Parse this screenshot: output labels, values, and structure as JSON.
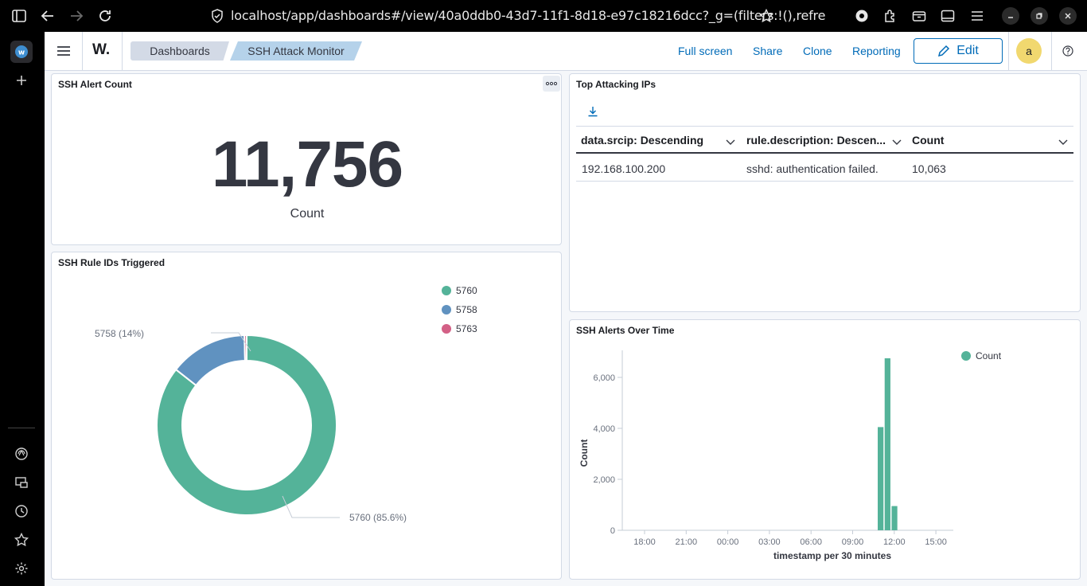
{
  "browser": {
    "url": "localhost/app/dashboards#/view/40a0ddb0-43d7-11f1-8d18-e97c18216dcc?_g=(filters:!(),refre"
  },
  "app": {
    "logo": "W.",
    "breadcrumbs": [
      "Dashboards",
      "SSH Attack Monitor"
    ],
    "header_links": [
      "Full screen",
      "Share",
      "Clone",
      "Reporting"
    ],
    "edit_label": "Edit",
    "avatar": "a",
    "colors": {
      "accent": "#006bb8",
      "green": "#54b399",
      "blue": "#6092c0",
      "pink": "#d36086",
      "avatar_bg": "#f1d86f"
    }
  },
  "panels": {
    "metric": {
      "title": "SSH Alert Count",
      "value": "11,756",
      "label": "Count"
    },
    "top_ips": {
      "title": "Top Attacking IPs",
      "columns": [
        "data.srcip: Descending",
        "rule.description: Descen...",
        "Count"
      ],
      "rows": [
        [
          "192.168.100.200",
          "sshd: authentication failed.",
          "10,063"
        ]
      ]
    },
    "rule_ids": {
      "title": "SSH Rule IDs Triggered",
      "legend": [
        "5760",
        "5758",
        "5763"
      ],
      "labels": [
        "5758 (14%)",
        "5760 (85.6%)"
      ]
    },
    "alerts_over_time": {
      "title": "SSH Alerts Over Time",
      "legend": "Count",
      "ylabel": "Count",
      "xlabel": "timestamp per 30 minutes",
      "xticks": [
        "18:00",
        "21:00",
        "00:00",
        "03:00",
        "06:00",
        "09:00",
        "12:00",
        "15:00"
      ],
      "yticks": [
        "0",
        "2,000",
        "4,000",
        "6,000"
      ]
    }
  },
  "chart_data": [
    {
      "type": "pie",
      "title": "SSH Rule IDs Triggered",
      "categories": [
        "5760",
        "5758",
        "5763"
      ],
      "values": [
        85.6,
        14.0,
        0.4
      ],
      "legend": "top-right"
    },
    {
      "type": "bar",
      "title": "SSH Alerts Over Time",
      "xlabel": "timestamp per 30 minutes",
      "ylabel": "Count",
      "categories": [
        "11:00",
        "11:30",
        "12:00"
      ],
      "values": [
        4050,
        6750,
        950
      ],
      "ylim": [
        0,
        7000
      ],
      "legend": "top-right",
      "series": [
        {
          "name": "Count",
          "values": [
            4050,
            6750,
            950
          ]
        }
      ]
    }
  ]
}
